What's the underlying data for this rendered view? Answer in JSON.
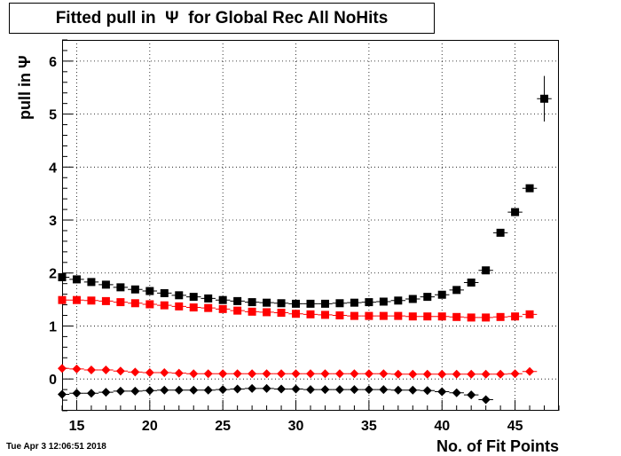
{
  "chart_data": {
    "type": "scatter",
    "title": "Fitted pull in  Ψ  for Global Rec All NoHits",
    "xlabel": "No. of Fit Points",
    "ylabel": "pull in  Ψ",
    "xlim": [
      14,
      48
    ],
    "ylim": [
      -0.6,
      6.4
    ],
    "xticks": [
      15,
      20,
      25,
      30,
      35,
      40,
      45
    ],
    "yticks": [
      0,
      1,
      2,
      3,
      4,
      5,
      6
    ],
    "grid": true,
    "series": [
      {
        "marker": "square",
        "color": "#000000",
        "x": [
          14,
          15,
          16,
          17,
          18,
          19,
          20,
          21,
          22,
          23,
          24,
          25,
          26,
          27,
          28,
          29,
          30,
          31,
          32,
          33,
          34,
          35,
          36,
          37,
          38,
          39,
          40,
          41,
          42,
          43,
          44,
          45,
          46,
          47
        ],
        "y": [
          1.92,
          1.88,
          1.83,
          1.78,
          1.73,
          1.69,
          1.66,
          1.62,
          1.58,
          1.55,
          1.52,
          1.49,
          1.47,
          1.45,
          1.44,
          1.43,
          1.42,
          1.42,
          1.42,
          1.43,
          1.44,
          1.45,
          1.46,
          1.48,
          1.51,
          1.55,
          1.59,
          1.68,
          1.82,
          2.05,
          2.76,
          3.15,
          3.6,
          5.29
        ],
        "yerr": [
          0,
          0,
          0,
          0,
          0,
          0,
          0,
          0,
          0,
          0,
          0,
          0,
          0,
          0,
          0,
          0,
          0,
          0,
          0,
          0,
          0,
          0,
          0,
          0,
          0,
          0,
          0,
          0,
          0,
          0,
          0,
          0,
          0,
          0.43
        ]
      },
      {
        "marker": "square",
        "color": "#ff0000",
        "x": [
          14,
          15,
          16,
          17,
          18,
          19,
          20,
          21,
          22,
          23,
          24,
          25,
          26,
          27,
          28,
          29,
          30,
          31,
          32,
          33,
          34,
          35,
          36,
          37,
          38,
          39,
          40,
          41,
          42,
          43,
          44,
          45,
          46
        ],
        "y": [
          1.49,
          1.49,
          1.48,
          1.47,
          1.45,
          1.43,
          1.41,
          1.39,
          1.37,
          1.35,
          1.34,
          1.32,
          1.29,
          1.27,
          1.26,
          1.25,
          1.23,
          1.22,
          1.21,
          1.2,
          1.19,
          1.19,
          1.19,
          1.19,
          1.18,
          1.18,
          1.18,
          1.17,
          1.16,
          1.16,
          1.17,
          1.18,
          1.22
        ]
      },
      {
        "marker": "diamond",
        "color": "#ff0000",
        "x": [
          14,
          15,
          16,
          17,
          18,
          19,
          20,
          21,
          22,
          23,
          24,
          25,
          26,
          27,
          28,
          29,
          30,
          31,
          32,
          33,
          34,
          35,
          36,
          37,
          38,
          39,
          40,
          41,
          42,
          43,
          44,
          45,
          46
        ],
        "y": [
          0.2,
          0.19,
          0.17,
          0.17,
          0.15,
          0.13,
          0.12,
          0.12,
          0.11,
          0.1,
          0.1,
          0.1,
          0.1,
          0.1,
          0.1,
          0.1,
          0.1,
          0.1,
          0.1,
          0.1,
          0.1,
          0.1,
          0.1,
          0.09,
          0.09,
          0.09,
          0.09,
          0.09,
          0.09,
          0.09,
          0.09,
          0.1,
          0.14
        ]
      },
      {
        "marker": "diamond",
        "color": "#000000",
        "x": [
          14,
          15,
          16,
          17,
          18,
          19,
          20,
          21,
          22,
          23,
          24,
          25,
          26,
          27,
          28,
          29,
          30,
          31,
          32,
          33,
          34,
          35,
          36,
          37,
          38,
          39,
          40,
          41,
          42,
          43
        ],
        "y": [
          -0.29,
          -0.27,
          -0.27,
          -0.25,
          -0.23,
          -0.23,
          -0.22,
          -0.21,
          -0.21,
          -0.21,
          -0.21,
          -0.2,
          -0.19,
          -0.18,
          -0.18,
          -0.19,
          -0.19,
          -0.2,
          -0.2,
          -0.2,
          -0.2,
          -0.2,
          -0.2,
          -0.21,
          -0.21,
          -0.22,
          -0.24,
          -0.26,
          -0.3,
          -0.39
        ]
      }
    ]
  },
  "footer": {
    "timestamp": "Tue Apr  3 12:06:51 2018"
  }
}
